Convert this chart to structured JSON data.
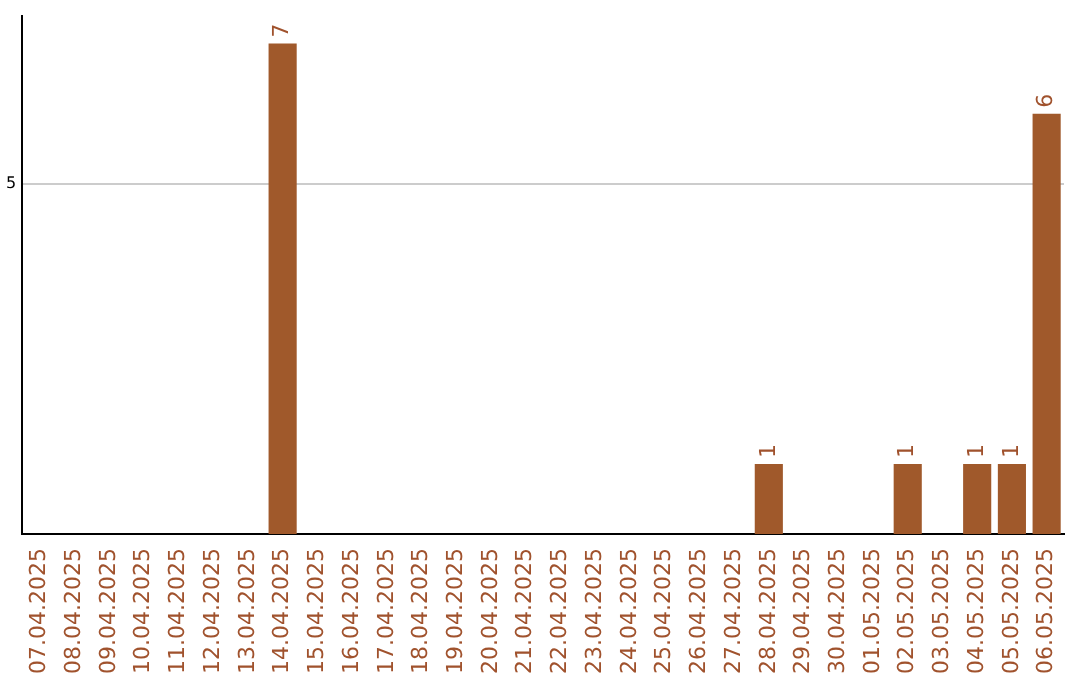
{
  "chart_data": {
    "type": "bar",
    "categories": [
      "07.04.2025",
      "08.04.2025",
      "09.04.2025",
      "10.04.2025",
      "11.04.2025",
      "12.04.2025",
      "13.04.2025",
      "14.04.2025",
      "15.04.2025",
      "16.04.2025",
      "17.04.2025",
      "18.04.2025",
      "19.04.2025",
      "20.04.2025",
      "21.04.2025",
      "22.04.2025",
      "23.04.2025",
      "24.04.2025",
      "25.04.2025",
      "26.04.2025",
      "27.04.2025",
      "28.04.2025",
      "29.04.2025",
      "30.04.2025",
      "01.05.2025",
      "02.05.2025",
      "03.05.2025",
      "04.05.2025",
      "05.05.2025",
      "06.05.2025"
    ],
    "values": [
      0,
      0,
      0,
      0,
      0,
      0,
      0,
      7,
      0,
      0,
      0,
      0,
      0,
      0,
      0,
      0,
      0,
      0,
      0,
      0,
      0,
      1,
      0,
      0,
      0,
      1,
      0,
      1,
      1,
      6
    ],
    "value_labels": [
      null,
      null,
      null,
      null,
      null,
      null,
      null,
      "7",
      null,
      null,
      null,
      null,
      null,
      null,
      null,
      null,
      null,
      null,
      null,
      null,
      null,
      "1",
      null,
      null,
      null,
      "1",
      null,
      "1",
      "1",
      "6"
    ],
    "color": "#a0592b",
    "ylim": [
      0,
      7.4
    ],
    "yticks": [
      5
    ],
    "grid": "y",
    "legend": false
  }
}
